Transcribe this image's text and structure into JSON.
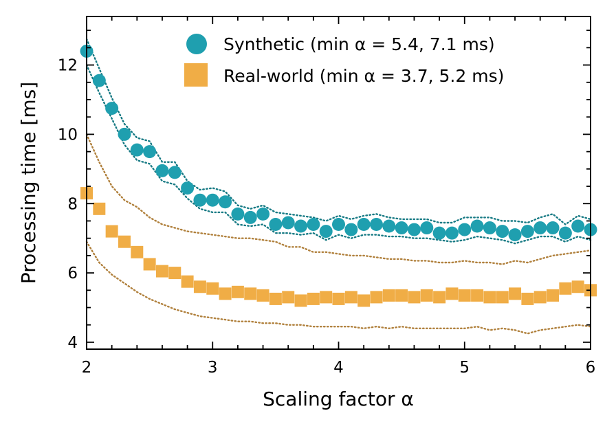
{
  "chart_data": {
    "type": "scatter",
    "xlabel": "Scaling factor α",
    "ylabel": "Processing time [ms]",
    "xlim": [
      2,
      6
    ],
    "ylim": [
      3.8,
      13.4
    ],
    "xticks": [
      2,
      3,
      4,
      5,
      6
    ],
    "xtick_labels": [
      "2",
      "3",
      "4",
      "5",
      "6"
    ],
    "yticks": [
      4,
      6,
      8,
      10,
      12
    ],
    "ytick_labels": [
      "4",
      "6",
      "8",
      "10",
      "12"
    ],
    "x_minor_step": 0.2,
    "y_minor_step": 0.5,
    "grid": false,
    "legend_position": "top-right",
    "x": [
      2.0,
      2.1,
      2.2,
      2.3,
      2.4,
      2.5,
      2.6,
      2.7,
      2.8,
      2.9,
      3.0,
      3.1,
      3.2,
      3.3,
      3.4,
      3.5,
      3.6,
      3.7,
      3.8,
      3.9,
      4.0,
      4.1,
      4.2,
      4.3,
      4.4,
      4.5,
      4.6,
      4.7,
      4.8,
      4.9,
      5.0,
      5.1,
      5.2,
      5.3,
      5.4,
      5.5,
      5.6,
      5.7,
      5.8,
      5.9,
      6.0
    ],
    "series": [
      {
        "name": "Synthetic",
        "legend_label": "Synthetic (min α = 5.4, 7.1 ms)",
        "marker": "circle",
        "color": "#1f9faf",
        "band_color": "#177a84",
        "values": [
          12.4,
          11.55,
          10.75,
          10.0,
          9.55,
          9.5,
          8.95,
          8.9,
          8.45,
          8.1,
          8.1,
          8.05,
          7.7,
          7.6,
          7.7,
          7.4,
          7.45,
          7.35,
          7.4,
          7.2,
          7.4,
          7.25,
          7.4,
          7.4,
          7.35,
          7.3,
          7.25,
          7.3,
          7.15,
          7.15,
          7.25,
          7.35,
          7.3,
          7.2,
          7.1,
          7.2,
          7.3,
          7.3,
          7.15,
          7.35,
          7.25
        ],
        "band_upper": [
          12.75,
          11.9,
          11.05,
          10.3,
          9.9,
          9.8,
          9.2,
          9.2,
          8.65,
          8.4,
          8.45,
          8.35,
          7.95,
          7.85,
          7.95,
          7.75,
          7.7,
          7.65,
          7.6,
          7.5,
          7.65,
          7.55,
          7.65,
          7.7,
          7.6,
          7.55,
          7.55,
          7.55,
          7.45,
          7.45,
          7.6,
          7.6,
          7.6,
          7.5,
          7.5,
          7.45,
          7.6,
          7.7,
          7.4,
          7.65,
          7.55
        ],
        "band_lower": [
          12.0,
          11.2,
          10.45,
          9.7,
          9.25,
          9.15,
          8.65,
          8.55,
          8.15,
          7.85,
          7.75,
          7.75,
          7.4,
          7.35,
          7.4,
          7.15,
          7.15,
          7.1,
          7.15,
          6.95,
          7.1,
          7.0,
          7.1,
          7.1,
          7.05,
          7.05,
          7.0,
          7.0,
          6.95,
          6.9,
          6.95,
          7.05,
          7.0,
          6.95,
          6.85,
          6.95,
          7.05,
          7.05,
          6.9,
          7.05,
          6.95
        ]
      },
      {
        "name": "Real-world",
        "legend_label": "Real-world (min α = 3.7, 5.2 ms)",
        "marker": "square",
        "color": "#f0ad46",
        "band_color": "#b0803c",
        "values": [
          8.3,
          7.85,
          7.2,
          6.9,
          6.6,
          6.25,
          6.05,
          6.0,
          5.75,
          5.6,
          5.55,
          5.4,
          5.45,
          5.4,
          5.35,
          5.25,
          5.3,
          5.2,
          5.25,
          5.3,
          5.25,
          5.3,
          5.2,
          5.3,
          5.35,
          5.35,
          5.3,
          5.35,
          5.3,
          5.4,
          5.35,
          5.35,
          5.3,
          5.3,
          5.4,
          5.25,
          5.3,
          5.35,
          5.55,
          5.6,
          5.5
        ],
        "band_upper": [
          10.0,
          9.2,
          8.5,
          8.1,
          7.9,
          7.6,
          7.4,
          7.3,
          7.2,
          7.15,
          7.1,
          7.05,
          7.0,
          7.0,
          6.95,
          6.9,
          6.75,
          6.75,
          6.6,
          6.6,
          6.55,
          6.5,
          6.5,
          6.45,
          6.4,
          6.4,
          6.35,
          6.35,
          6.3,
          6.3,
          6.35,
          6.3,
          6.3,
          6.25,
          6.35,
          6.3,
          6.4,
          6.5,
          6.55,
          6.6,
          6.65
        ],
        "band_lower": [
          6.9,
          6.3,
          5.95,
          5.7,
          5.45,
          5.25,
          5.1,
          4.95,
          4.85,
          4.75,
          4.7,
          4.65,
          4.6,
          4.6,
          4.55,
          4.55,
          4.5,
          4.5,
          4.45,
          4.45,
          4.45,
          4.45,
          4.4,
          4.45,
          4.4,
          4.45,
          4.4,
          4.4,
          4.4,
          4.4,
          4.4,
          4.45,
          4.35,
          4.4,
          4.35,
          4.25,
          4.35,
          4.4,
          4.45,
          4.5,
          4.45
        ]
      }
    ]
  }
}
